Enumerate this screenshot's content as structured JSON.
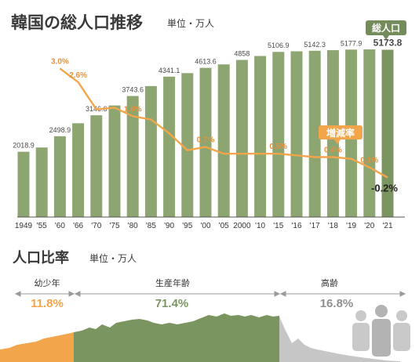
{
  "title": "韓国の総人口推移",
  "unit": "単位・万人",
  "total_badge": "総人口",
  "rate_badge": "増減率",
  "colors": {
    "bar": "#8ca571",
    "bar_last": "#7b9561",
    "line": "#f2a54a",
    "badge": "#748b5b",
    "rate_badge": "#f2a54a",
    "youth": "#f2a54a",
    "working": "#7b9561",
    "elderly": "#bcbcbc"
  },
  "chart_data": [
    {
      "type": "bar",
      "title": "韓国の総人口推移",
      "unit": "単位・万人",
      "categories": [
        "1949",
        "'55",
        "'60",
        "'66",
        "'70",
        "'75",
        "'80",
        "'85",
        "'90",
        "'95",
        "'00",
        "'05",
        "2000",
        "'10",
        "'15",
        "'16",
        "'17",
        "'18",
        "'19",
        "'20",
        "'21"
      ],
      "series": [
        {
          "name": "総人口",
          "values": [
            2018.9,
            2150,
            2498.9,
            2900,
            3146.6,
            3450,
            3743.6,
            4050,
            4341.1,
            4450,
            4613.6,
            4720,
            4858,
            4980,
            5106.9,
            5125,
            5142.3,
            5160,
            5177.9,
            5183,
            5173.8
          ],
          "labels": [
            "2018.9",
            "",
            "2498.9",
            "",
            "3146.6",
            "",
            "3743.6",
            "",
            "4341.1",
            "",
            "4613.6",
            "",
            "4858",
            "",
            "5106.9",
            "",
            "5142.3",
            "",
            "5177.9",
            "",
            "5173.8"
          ]
        },
        {
          "name": "増減率",
          "type": "line",
          "values": [
            null,
            null,
            3.0,
            2.6,
            1.8,
            1.85,
            1.6,
            1.5,
            1.1,
            0.6,
            0.7,
            0.5,
            0.5,
            0.5,
            0.5,
            0.45,
            0.4,
            0.4,
            0.35,
            0.1,
            -0.2
          ],
          "labels": [
            "",
            "",
            "3.0%",
            "2.6%",
            "",
            "",
            "1.6%",
            "",
            "",
            "",
            "0.7%",
            "",
            "",
            "",
            "0.5%",
            "",
            "",
            "0.4%",
            "",
            "0.1%",
            "-0.2%"
          ]
        }
      ],
      "ylim": [
        0,
        5500
      ],
      "rate_ylim": [
        -0.6,
        3.4
      ]
    },
    {
      "type": "area",
      "title": "人口比率",
      "unit": "単位・万人",
      "segments": [
        {
          "name": "幼少年",
          "value": "11.8%"
        },
        {
          "name": "生産年齢",
          "value": "71.4%"
        },
        {
          "name": "高齢",
          "value": "16.8%"
        }
      ]
    }
  ],
  "ratio": {
    "title": "人口比率",
    "unit": "単位・万人"
  }
}
